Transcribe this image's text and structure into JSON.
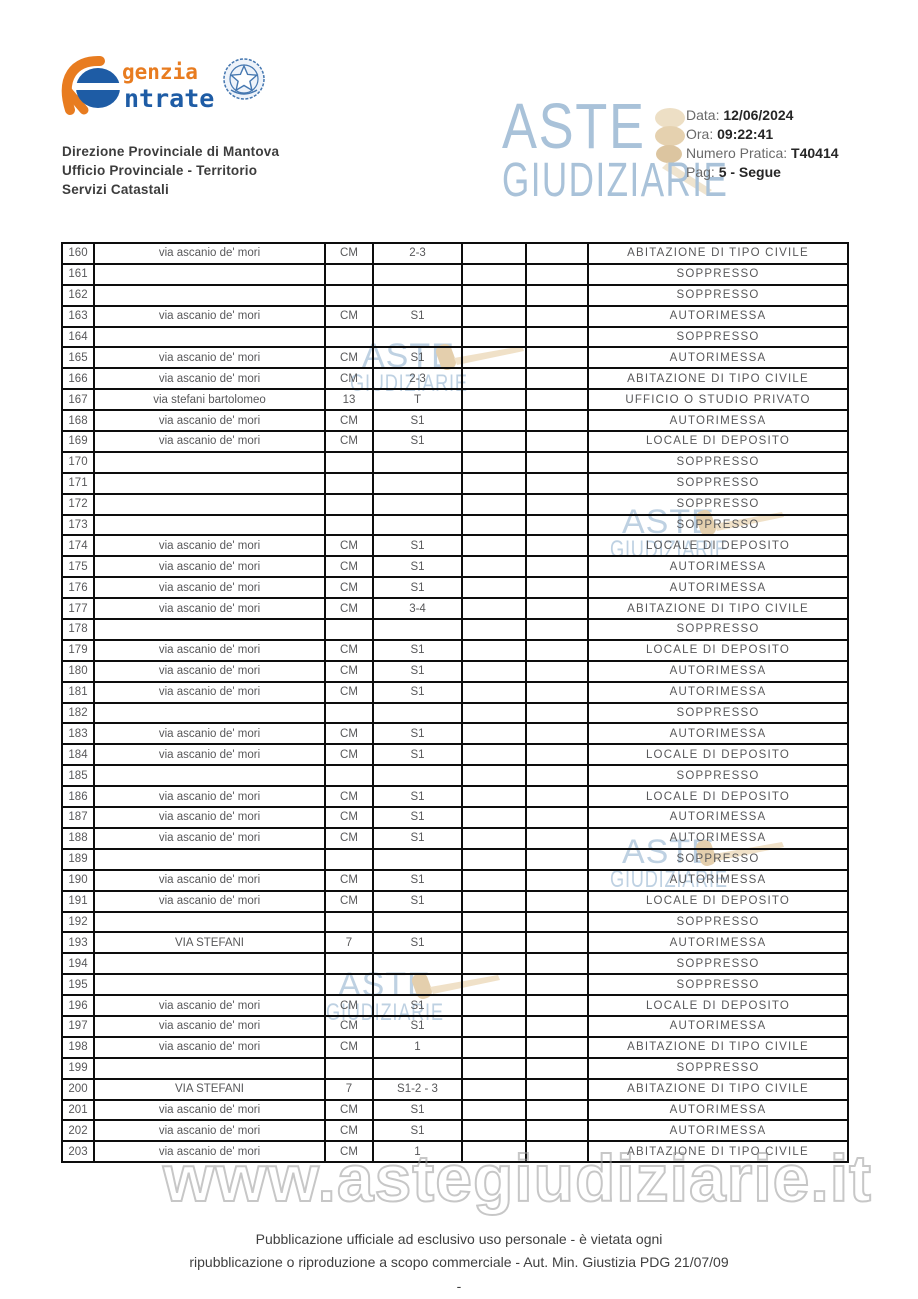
{
  "header": {
    "agency": {
      "logo_top": "genzia",
      "logo_bottom": "ntrate",
      "office_line1": "Direzione Provinciale di Mantova",
      "office_line2": "Ufficio Provinciale - Territorio",
      "office_line3": "Servizi Catastali"
    },
    "info": {
      "data_label": "Data:",
      "data_value": "12/06/2024",
      "ora_label": "Ora:",
      "ora_value": "09:22:41",
      "pratica_label": "Numero Pratica:",
      "pratica_value": "T40414",
      "pag_label": "Pag:",
      "pag_value": "5 - Segue"
    },
    "aste_logo": {
      "line1": "ASTE",
      "line2": "GIUDIZIARIE"
    }
  },
  "watermark": {
    "small_line1": "ASTE",
    "small_line2": "GIUDIZIARIE",
    "big_url": "www.astegiudiziarie.it",
    "colors": {
      "text": "#b6cbdf",
      "gavel": "#e7d5b5",
      "url_outline": "#9a9a9a"
    }
  },
  "table": {
    "rows": [
      [
        "160",
        "via ascanio de' mori",
        "CM",
        "2-3",
        "",
        "",
        "ABITAZIONE DI TIPO CIVILE"
      ],
      [
        "161",
        "",
        "",
        "",
        "",
        "",
        "SOPPRESSO"
      ],
      [
        "162",
        "",
        "",
        "",
        "",
        "",
        "SOPPRESSO"
      ],
      [
        "163",
        "via ascanio de' mori",
        "CM",
        "S1",
        "",
        "",
        "AUTORIMESSA"
      ],
      [
        "164",
        "",
        "",
        "",
        "",
        "",
        "SOPPRESSO"
      ],
      [
        "165",
        "via ascanio de' mori",
        "CM",
        "S1",
        "",
        "",
        "AUTORIMESSA"
      ],
      [
        "166",
        "via ascanio de' mori",
        "CM",
        "2-3",
        "",
        "",
        "ABITAZIONE DI TIPO CIVILE"
      ],
      [
        "167",
        "via stefani bartolomeo",
        "13",
        "T",
        "",
        "",
        "UFFICIO O STUDIO PRIVATO"
      ],
      [
        "168",
        "via ascanio de' mori",
        "CM",
        "S1",
        "",
        "",
        "AUTORIMESSA"
      ],
      [
        "169",
        "via ascanio de' mori",
        "CM",
        "S1",
        "",
        "",
        "LOCALE DI DEPOSITO"
      ],
      [
        "170",
        "",
        "",
        "",
        "",
        "",
        "SOPPRESSO"
      ],
      [
        "171",
        "",
        "",
        "",
        "",
        "",
        "SOPPRESSO"
      ],
      [
        "172",
        "",
        "",
        "",
        "",
        "",
        "SOPPRESSO"
      ],
      [
        "173",
        "",
        "",
        "",
        "",
        "",
        "SOPPRESSO"
      ],
      [
        "174",
        "via ascanio de' mori",
        "CM",
        "S1",
        "",
        "",
        "LOCALE DI DEPOSITO"
      ],
      [
        "175",
        "via ascanio de' mori",
        "CM",
        "S1",
        "",
        "",
        "AUTORIMESSA"
      ],
      [
        "176",
        "via ascanio de' mori",
        "CM",
        "S1",
        "",
        "",
        "AUTORIMESSA"
      ],
      [
        "177",
        "via ascanio de' mori",
        "CM",
        "3-4",
        "",
        "",
        "ABITAZIONE DI TIPO CIVILE"
      ],
      [
        "178",
        "",
        "",
        "",
        "",
        "",
        "SOPPRESSO"
      ],
      [
        "179",
        "via ascanio de' mori",
        "CM",
        "S1",
        "",
        "",
        "LOCALE DI DEPOSITO"
      ],
      [
        "180",
        "via ascanio de' mori",
        "CM",
        "S1",
        "",
        "",
        "AUTORIMESSA"
      ],
      [
        "181",
        "via ascanio de' mori",
        "CM",
        "S1",
        "",
        "",
        "AUTORIMESSA"
      ],
      [
        "182",
        "",
        "",
        "",
        "",
        "",
        "SOPPRESSO"
      ],
      [
        "183",
        "via ascanio de' mori",
        "CM",
        "S1",
        "",
        "",
        "AUTORIMESSA"
      ],
      [
        "184",
        "via ascanio de' mori",
        "CM",
        "S1",
        "",
        "",
        "LOCALE DI DEPOSITO"
      ],
      [
        "185",
        "",
        "",
        "",
        "",
        "",
        "SOPPRESSO"
      ],
      [
        "186",
        "via ascanio de' mori",
        "CM",
        "S1",
        "",
        "",
        "LOCALE DI DEPOSITO"
      ],
      [
        "187",
        "via ascanio de' mori",
        "CM",
        "S1",
        "",
        "",
        "AUTORIMESSA"
      ],
      [
        "188",
        "via ascanio de' mori",
        "CM",
        "S1",
        "",
        "",
        "AUTORIMESSA"
      ],
      [
        "189",
        "",
        "",
        "",
        "",
        "",
        "SOPPRESSO"
      ],
      [
        "190",
        "via ascanio de' mori",
        "CM",
        "S1",
        "",
        "",
        "AUTORIMESSA"
      ],
      [
        "191",
        "via ascanio de' mori",
        "CM",
        "S1",
        "",
        "",
        "LOCALE DI DEPOSITO"
      ],
      [
        "192",
        "",
        "",
        "",
        "",
        "",
        "SOPPRESSO"
      ],
      [
        "193",
        "VIA STEFANI",
        "7",
        "S1",
        "",
        "",
        "AUTORIMESSA"
      ],
      [
        "194",
        "",
        "",
        "",
        "",
        "",
        "SOPPRESSO"
      ],
      [
        "195",
        "",
        "",
        "",
        "",
        "",
        "SOPPRESSO"
      ],
      [
        "196",
        "via ascanio de' mori",
        "CM",
        "S1",
        "",
        "",
        "LOCALE DI DEPOSITO"
      ],
      [
        "197",
        "via ascanio de' mori",
        "CM",
        "S1",
        "",
        "",
        "AUTORIMESSA"
      ],
      [
        "198",
        "via ascanio de' mori",
        "CM",
        "1",
        "",
        "",
        "ABITAZIONE DI TIPO CIVILE"
      ],
      [
        "199",
        "",
        "",
        "",
        "",
        "",
        "SOPPRESSO"
      ],
      [
        "200",
        "VIA STEFANI",
        "7",
        "S1-2 - 3",
        "",
        "",
        "ABITAZIONE DI TIPO CIVILE"
      ],
      [
        "201",
        "via ascanio de' mori",
        "CM",
        "S1",
        "",
        "",
        "AUTORIMESSA"
      ],
      [
        "202",
        "via ascanio de' mori",
        "CM",
        "S1",
        "",
        "",
        "AUTORIMESSA"
      ],
      [
        "203",
        "via ascanio de' mori",
        "CM",
        "1",
        "",
        "",
        "ABITAZIONE DI TIPO CIVILE"
      ]
    ]
  },
  "footer": {
    "line1": "Pubblicazione ufficiale ad esclusivo uso personale - è vietata ogni",
    "line2": "ripubblicazione o riproduzione a scopo commerciale - Aut. Min. Giustizia PDG 21/07/09",
    "dash": "-"
  }
}
